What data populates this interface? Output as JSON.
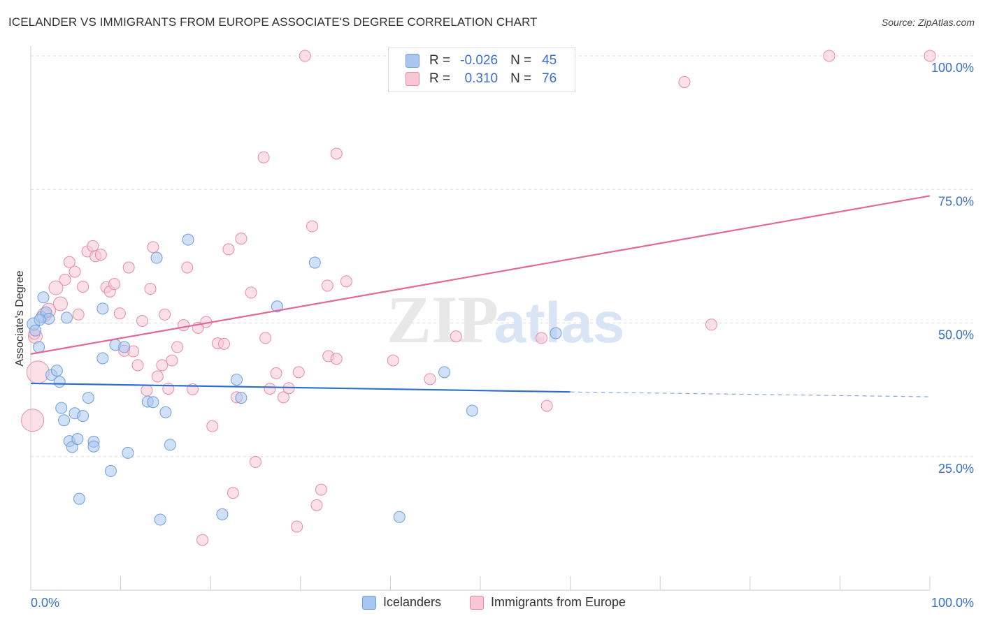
{
  "header": {
    "title": "ICELANDER VS IMMIGRANTS FROM EUROPE ASSOCIATE'S DEGREE CORRELATION CHART",
    "source": "Source: ZipAtlas.com"
  },
  "stats": [
    {
      "r_label": "R =",
      "r_value": "-0.026",
      "n_label": "N =",
      "n_value": "45",
      "color": "#a9c6f0",
      "border": "#6f9edc"
    },
    {
      "r_label": "R =",
      "r_value": "0.310",
      "n_label": "N =",
      "n_value": "76",
      "color": "#f9c6d5",
      "border": "#e88aa6"
    }
  ],
  "watermark": {
    "zip": "ZIP",
    "atlas": "atlas"
  },
  "chart_data": {
    "type": "scatter",
    "title": "ICELANDER VS IMMIGRANTS FROM EUROPE ASSOCIATE'S DEGREE CORRELATION CHART",
    "xlabel": "",
    "ylabel": "Associate's Degree",
    "xlim": [
      0,
      100
    ],
    "ylim": [
      0,
      100
    ],
    "x_tick_labels": [
      "0.0%",
      "100.0%"
    ],
    "y_ticks": [
      25,
      50,
      75,
      100
    ],
    "y_tick_labels": [
      "25.0%",
      "50.0%",
      "75.0%",
      "100.0%"
    ],
    "grid": true,
    "legend_position": "bottom-center",
    "series": [
      {
        "name": "Icelanders",
        "color": "#a9c6f0",
        "stroke": "#6f9edc",
        "trend": {
          "x0": 0,
          "y0": 38.7,
          "x1": 60,
          "y1": 37.1,
          "dash_to_x": 100,
          "dash_to_y": 36.2,
          "color": "#2f6fcc"
        },
        "points": [
          [
            0.3,
            49.8,
            9
          ],
          [
            0.9,
            45.5,
            8
          ],
          [
            1.2,
            51.1,
            8
          ],
          [
            1.4,
            54.8,
            8
          ],
          [
            1.7,
            52.0,
            8
          ],
          [
            2.0,
            50.8,
            8
          ],
          [
            2.3,
            40.3,
            8
          ],
          [
            2.9,
            41.1,
            8
          ],
          [
            3.2,
            39.0,
            8
          ],
          [
            3.4,
            34.1,
            8
          ],
          [
            3.7,
            31.8,
            8
          ],
          [
            4.0,
            51.0,
            8
          ],
          [
            4.3,
            27.9,
            8
          ],
          [
            4.6,
            26.8,
            8
          ],
          [
            4.9,
            33.1,
            8
          ],
          [
            5.2,
            28.3,
            8
          ],
          [
            5.4,
            17.1,
            8
          ],
          [
            5.8,
            32.6,
            8
          ],
          [
            6.4,
            36.0,
            8
          ],
          [
            7.0,
            27.8,
            8
          ],
          [
            7.0,
            26.9,
            8
          ],
          [
            8.0,
            43.4,
            8
          ],
          [
            8.0,
            52.7,
            8
          ],
          [
            8.9,
            22.3,
            8
          ],
          [
            9.4,
            45.9,
            8
          ],
          [
            10.4,
            45.5,
            8
          ],
          [
            10.8,
            25.7,
            8
          ],
          [
            13.0,
            35.3,
            8
          ],
          [
            13.6,
            35.2,
            8
          ],
          [
            14.0,
            62.2,
            8
          ],
          [
            14.4,
            13.2,
            8
          ],
          [
            15.0,
            33.3,
            8
          ],
          [
            15.5,
            27.2,
            8
          ],
          [
            17.5,
            65.6,
            8
          ],
          [
            21.3,
            14.2,
            8
          ],
          [
            22.9,
            39.4,
            8
          ],
          [
            23.4,
            36.0,
            8
          ],
          [
            27.4,
            53.1,
            8
          ],
          [
            31.6,
            61.3,
            8
          ],
          [
            41.0,
            13.7,
            8
          ],
          [
            46.0,
            40.8,
            8
          ],
          [
            49.1,
            33.6,
            8
          ],
          [
            58.4,
            48.1,
            8
          ],
          [
            0.5,
            48.6,
            8
          ],
          [
            1.0,
            50.6,
            8
          ]
        ]
      },
      {
        "name": "Immigrants from Europe",
        "color": "#f9c6d5",
        "stroke": "#e88aa6",
        "trend": {
          "x0": 0,
          "y0": 44.2,
          "x1": 100,
          "y1": 73.8,
          "color": "#e0689a"
        },
        "points": [
          [
            0.2,
            31.8,
            16
          ],
          [
            0.5,
            47.5,
            10
          ],
          [
            0.8,
            40.8,
            16
          ],
          [
            1.5,
            51.5,
            10
          ],
          [
            2.0,
            52.4,
            10
          ],
          [
            2.8,
            56.6,
            10
          ],
          [
            3.3,
            53.6,
            10
          ],
          [
            3.8,
            58.1,
            8
          ],
          [
            4.3,
            61.4,
            8
          ],
          [
            4.9,
            59.6,
            8
          ],
          [
            5.3,
            51.6,
            8
          ],
          [
            5.8,
            56.8,
            8
          ],
          [
            6.3,
            63.4,
            8
          ],
          [
            6.9,
            64.4,
            8
          ],
          [
            7.2,
            62.5,
            8
          ],
          [
            7.8,
            62.8,
            8
          ],
          [
            8.4,
            56.7,
            8
          ],
          [
            8.8,
            55.9,
            8
          ],
          [
            9.3,
            57.3,
            8
          ],
          [
            9.9,
            51.8,
            8
          ],
          [
            10.4,
            44.8,
            8
          ],
          [
            10.9,
            60.4,
            8
          ],
          [
            11.4,
            44.7,
            8
          ],
          [
            11.9,
            42.1,
            8
          ],
          [
            12.4,
            50.4,
            8
          ],
          [
            12.9,
            37.4,
            8
          ],
          [
            13.3,
            56.4,
            8
          ],
          [
            13.6,
            64.2,
            8
          ],
          [
            14.1,
            40.0,
            8
          ],
          [
            14.6,
            42.1,
            8
          ],
          [
            14.9,
            51.6,
            8
          ],
          [
            15.3,
            37.7,
            8
          ],
          [
            15.7,
            43.0,
            8
          ],
          [
            16.3,
            45.5,
            8
          ],
          [
            17.0,
            49.6,
            8
          ],
          [
            17.4,
            60.4,
            8
          ],
          [
            18.0,
            37.6,
            8
          ],
          [
            18.6,
            49.1,
            8
          ],
          [
            19.1,
            9.4,
            8
          ],
          [
            19.5,
            50.2,
            8
          ],
          [
            20.2,
            30.7,
            8
          ],
          [
            20.8,
            46.2,
            8
          ],
          [
            21.5,
            46.1,
            8
          ],
          [
            22.0,
            63.8,
            8
          ],
          [
            22.5,
            18.2,
            8
          ],
          [
            22.9,
            36.1,
            8
          ],
          [
            23.4,
            65.8,
            8
          ],
          [
            24.5,
            55.7,
            8
          ],
          [
            25.0,
            24.0,
            8
          ],
          [
            25.9,
            81.0,
            8
          ],
          [
            26.1,
            47.2,
            8
          ],
          [
            26.6,
            37.7,
            8
          ],
          [
            27.3,
            40.6,
            8
          ],
          [
            28.1,
            36.1,
            8
          ],
          [
            28.7,
            37.8,
            8
          ],
          [
            29.6,
            11.9,
            8
          ],
          [
            29.8,
            40.8,
            8
          ],
          [
            30.5,
            100.0,
            8
          ],
          [
            31.3,
            68.1,
            8
          ],
          [
            31.8,
            15.9,
            8
          ],
          [
            32.3,
            18.8,
            8
          ],
          [
            33.0,
            57.0,
            8
          ],
          [
            33.1,
            43.8,
            8
          ],
          [
            34.0,
            43.3,
            8
          ],
          [
            34.0,
            81.7,
            8
          ],
          [
            35.1,
            57.8,
            8
          ],
          [
            40.3,
            43.0,
            8
          ],
          [
            44.4,
            39.5,
            8
          ],
          [
            47.3,
            47.5,
            8
          ],
          [
            56.8,
            47.2,
            8
          ],
          [
            57.4,
            34.5,
            8
          ],
          [
            72.7,
            95.1,
            8
          ],
          [
            75.7,
            49.7,
            8
          ],
          [
            88.8,
            100.0,
            8
          ],
          [
            100.0,
            100.0,
            8
          ],
          [
            0.4,
            48.0,
            8
          ]
        ]
      }
    ]
  }
}
